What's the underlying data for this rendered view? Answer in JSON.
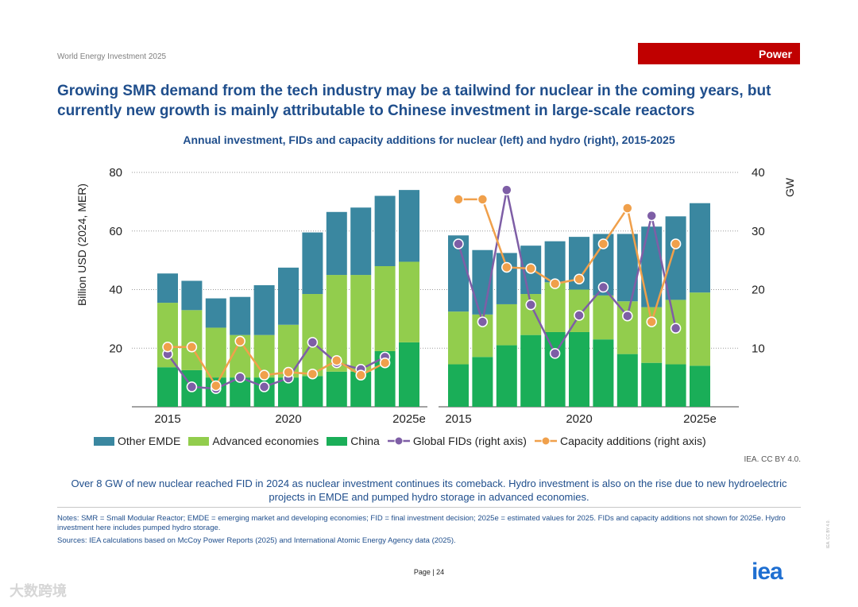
{
  "header": {
    "report": "World Energy Investment 2025",
    "tag": "Power"
  },
  "title": "Growing SMR demand from the tech industry may be a tailwind for nuclear in the coming years, but currently new growth is mainly attributable to Chinese investment in large-scale reactors",
  "chart_title": "Annual investment, FIDs and capacity additions for nuclear (left) and hydro (right), 2015-2025",
  "colors": {
    "other_emde": "#3a87a0",
    "advanced": "#92cd4d",
    "china": "#1aae58",
    "fids": "#7e5ea6",
    "capacity": "#f0a04b"
  },
  "chart_data": [
    {
      "panel": "Nuclear (left)",
      "type": "bar",
      "stacked": true,
      "categories": [
        "2015",
        "2016",
        "2017",
        "2018",
        "2019",
        "2020",
        "2021",
        "2022",
        "2023",
        "2024",
        "2025e"
      ],
      "x_tick_labels": [
        "2015",
        "2020",
        "2025e"
      ],
      "ylabel": "Billion USD (2024, MER)",
      "ylim": [
        0,
        80
      ],
      "y_ticks": [
        20,
        40,
        60,
        80
      ],
      "y2label": "GW",
      "y2lim": [
        0,
        40
      ],
      "y2_ticks": [
        10,
        20,
        30,
        40
      ],
      "grid": "horizontal dotted",
      "series": [
        {
          "name": "China",
          "values": [
            13.5,
            12.5,
            10,
            10,
            10,
            10,
            10.5,
            12,
            12,
            19,
            22
          ]
        },
        {
          "name": "Advanced economies",
          "values": [
            22,
            20.5,
            17,
            14.5,
            14.5,
            18,
            28,
            33,
            33,
            29,
            27.5
          ]
        },
        {
          "name": "Other EMDE",
          "values": [
            10,
            10,
            10,
            13,
            17,
            19.5,
            21,
            21.5,
            23,
            24,
            24.5
          ]
        },
        {
          "name": "Global FIDs (right axis)",
          "axis": "right",
          "values": [
            9,
            3.4,
            3.1,
            5,
            3.4,
            4.9,
            11,
            7.5,
            6.4,
            8.5,
            null
          ]
        },
        {
          "name": "Capacity additions (right axis)",
          "axis": "right",
          "values": [
            10.2,
            10.2,
            3.6,
            11.2,
            5.4,
            5.9,
            5.6,
            7.9,
            5.4,
            7.5,
            null
          ]
        }
      ]
    },
    {
      "panel": "Hydro (right)",
      "type": "bar",
      "stacked": true,
      "categories": [
        "2015",
        "2016",
        "2017",
        "2018",
        "2019",
        "2020",
        "2021",
        "2022",
        "2023",
        "2024",
        "2025e"
      ],
      "x_tick_labels": [
        "2015",
        "2020",
        "2025e"
      ],
      "ylim": [
        0,
        80
      ],
      "y2label": "GW",
      "y2lim": [
        0,
        40
      ],
      "y2_ticks": [
        10,
        20,
        30,
        40
      ],
      "grid": "horizontal dotted",
      "series": [
        {
          "name": "China",
          "values": [
            14.5,
            17,
            21,
            24.5,
            25.5,
            25.5,
            23,
            18,
            15,
            14.5,
            14
          ]
        },
        {
          "name": "Advanced economies",
          "values": [
            18,
            14.5,
            14,
            14,
            17,
            14.5,
            15,
            18,
            19,
            22,
            25
          ]
        },
        {
          "name": "Other EMDE",
          "values": [
            26,
            22,
            17.5,
            16.5,
            14,
            18,
            21,
            23,
            27.5,
            28.5,
            30.5
          ]
        },
        {
          "name": "Global FIDs (right axis)",
          "axis": "right",
          "values": [
            27.8,
            14.5,
            37,
            17.4,
            9.1,
            15.6,
            20.4,
            15.5,
            32.6,
            13.4,
            null
          ]
        },
        {
          "name": "Capacity additions (right axis)",
          "axis": "right",
          "values": [
            35.4,
            35.4,
            23.8,
            23.6,
            21,
            21.8,
            27.8,
            33.9,
            14.5,
            27.8,
            null
          ]
        }
      ]
    }
  ],
  "legend": [
    {
      "label": "Other EMDE",
      "kind": "bar",
      "color": "#3a87a0"
    },
    {
      "label": "Advanced economies",
      "kind": "bar",
      "color": "#92cd4d"
    },
    {
      "label": "China",
      "kind": "bar",
      "color": "#1aae58"
    },
    {
      "label": "Global FIDs (right axis)",
      "kind": "line",
      "color": "#7e5ea6"
    },
    {
      "label": "Capacity additions (right axis)",
      "kind": "line",
      "color": "#f0a04b"
    }
  ],
  "credit": "IEA. CC BY 4.0.",
  "summary": "Over 8 GW of new nuclear reached FID in 2024 as nuclear investment continues its comeback. Hydro investment is also on the rise due to new hydroelectric projects in EMDE and pumped hydro storage in advanced economies.",
  "notes": "Notes: SMR = Small Modular Reactor; EMDE = emerging market and developing economies; FID = final investment decision; 2025e = estimated values for 2025. FIDs and capacity additions not shown for 2025e. Hydro investment here includes pumped hydro storage.",
  "sources": "Sources: IEA calculations based on McCoy Power Reports (2025) and International Atomic Energy Agency data (2025).",
  "page_label": "Page | 24",
  "logo": "iea",
  "side_text": "IEA. CC BY 4.0.",
  "watermark": "大数跨境"
}
